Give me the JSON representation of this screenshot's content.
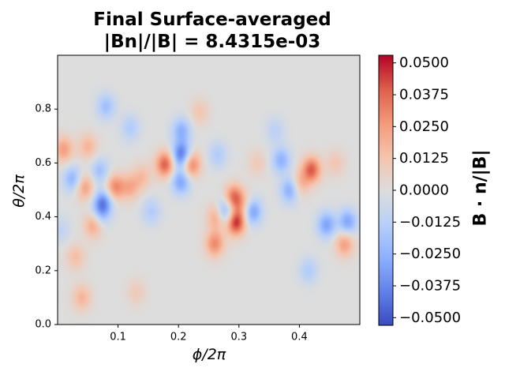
{
  "figure": {
    "title_line1": "Final Surface-averaged",
    "title_line2": "|Bn|/|B| = 8.4315e-03"
  },
  "chart_data": {
    "type": "heatmap",
    "title": "Final Surface-averaged |Bn|/|B| = 8.4315e-03",
    "xlabel": "ϕ/2π",
    "ylabel": "θ/2π",
    "colorbar_label": "B · n/|B|",
    "colormap": "coolwarm",
    "xlim": [
      0.0,
      0.5
    ],
    "ylim": [
      0.0,
      1.0
    ],
    "x_ticks": [
      0.1,
      0.2,
      0.3,
      0.4
    ],
    "x_tick_labels": [
      "0.1",
      "0.2",
      "0.3",
      "0.4"
    ],
    "y_ticks": [
      0.0,
      0.2,
      0.4,
      0.6,
      0.8
    ],
    "y_tick_labels": [
      "0.0",
      "0.2",
      "0.4",
      "0.6",
      "0.8"
    ],
    "clim": [
      -0.053,
      0.053
    ],
    "colorbar_ticks": [
      -0.05,
      -0.0375,
      -0.025,
      -0.0125,
      0.0,
      0.0125,
      0.025,
      0.0375,
      0.05
    ],
    "colorbar_tick_labels": [
      "−0.0500",
      "−0.0375",
      "−0.0250",
      "−0.0125",
      "0.0000",
      "0.0125",
      "0.0250",
      "0.0375",
      "0.0500"
    ],
    "features": [
      {
        "x": 0.295,
        "y": 0.38,
        "value": 0.05
      },
      {
        "x": 0.292,
        "y": 0.47,
        "value": 0.04
      },
      {
        "x": 0.26,
        "y": 0.3,
        "value": 0.03
      },
      {
        "x": 0.263,
        "y": 0.4,
        "value": 0.025
      },
      {
        "x": 0.178,
        "y": 0.595,
        "value": 0.04
      },
      {
        "x": 0.221,
        "y": 0.595,
        "value": 0.035
      },
      {
        "x": 0.42,
        "y": 0.575,
        "value": 0.04
      },
      {
        "x": 0.4,
        "y": 0.52,
        "value": 0.02
      },
      {
        "x": 0.06,
        "y": 0.37,
        "value": 0.025
      },
      {
        "x": 0.095,
        "y": 0.51,
        "value": 0.03
      },
      {
        "x": 0.045,
        "y": 0.51,
        "value": 0.025
      },
      {
        "x": 0.01,
        "y": 0.65,
        "value": 0.025
      },
      {
        "x": 0.05,
        "y": 0.66,
        "value": 0.018
      },
      {
        "x": 0.12,
        "y": 0.51,
        "value": 0.02
      },
      {
        "x": 0.14,
        "y": 0.55,
        "value": 0.015
      },
      {
        "x": 0.235,
        "y": 0.79,
        "value": 0.012
      },
      {
        "x": 0.03,
        "y": 0.25,
        "value": 0.015
      },
      {
        "x": 0.04,
        "y": 0.1,
        "value": 0.018
      },
      {
        "x": 0.13,
        "y": 0.12,
        "value": 0.01
      },
      {
        "x": 0.475,
        "y": 0.3,
        "value": 0.025
      },
      {
        "x": 0.46,
        "y": 0.6,
        "value": 0.012
      },
      {
        "x": 0.33,
        "y": 0.6,
        "value": 0.01
      },
      {
        "x": 0.31,
        "y": 0.44,
        "value": 0.015
      },
      {
        "x": 0.205,
        "y": 0.63,
        "value": -0.045
      },
      {
        "x": 0.204,
        "y": 0.53,
        "value": -0.03
      },
      {
        "x": 0.205,
        "y": 0.72,
        "value": -0.025
      },
      {
        "x": 0.278,
        "y": 0.42,
        "value": -0.035
      },
      {
        "x": 0.322,
        "y": 0.42,
        "value": -0.035
      },
      {
        "x": 0.075,
        "y": 0.45,
        "value": -0.04
      },
      {
        "x": 0.025,
        "y": 0.54,
        "value": -0.025
      },
      {
        "x": 0.07,
        "y": 0.57,
        "value": -0.02
      },
      {
        "x": 0.385,
        "y": 0.5,
        "value": -0.03
      },
      {
        "x": 0.37,
        "y": 0.61,
        "value": -0.025
      },
      {
        "x": 0.445,
        "y": 0.37,
        "value": -0.03
      },
      {
        "x": 0.48,
        "y": 0.38,
        "value": -0.03
      },
      {
        "x": 0.08,
        "y": 0.81,
        "value": -0.02
      },
      {
        "x": 0.155,
        "y": 0.42,
        "value": -0.015
      },
      {
        "x": 0.36,
        "y": 0.72,
        "value": -0.012
      },
      {
        "x": 0.265,
        "y": 0.63,
        "value": -0.015
      },
      {
        "x": 0.415,
        "y": 0.2,
        "value": -0.015
      },
      {
        "x": 0.07,
        "y": 0.4,
        "value": -0.015
      },
      {
        "x": 0.12,
        "y": 0.73,
        "value": -0.015
      },
      {
        "x": 0.005,
        "y": 0.35,
        "value": -0.01
      }
    ]
  }
}
